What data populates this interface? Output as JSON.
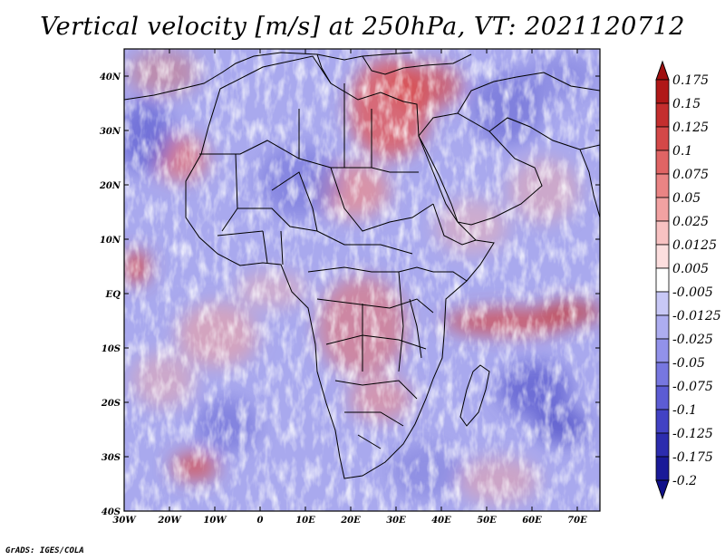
{
  "title": "Vertical velocity [m/s] at 250hPa, VT: 2021120712",
  "credit": "GrADS: IGES/COLA",
  "chart_data": {
    "type": "heatmap",
    "variable": "Vertical velocity",
    "units": "m/s",
    "level": "250hPa",
    "valid_time": "2021120712",
    "lon_range": [
      -30,
      75
    ],
    "lat_range": [
      -40,
      45
    ],
    "x_ticks": [
      {
        "value": -30,
        "label": "30W"
      },
      {
        "value": -20,
        "label": "20W"
      },
      {
        "value": -10,
        "label": "10W"
      },
      {
        "value": 0,
        "label": "0"
      },
      {
        "value": 10,
        "label": "10E"
      },
      {
        "value": 20,
        "label": "20E"
      },
      {
        "value": 30,
        "label": "30E"
      },
      {
        "value": 40,
        "label": "40E"
      },
      {
        "value": 50,
        "label": "50E"
      },
      {
        "value": 60,
        "label": "60E"
      },
      {
        "value": 70,
        "label": "70E"
      }
    ],
    "y_ticks": [
      {
        "value": 40,
        "label": "40N"
      },
      {
        "value": 30,
        "label": "30N"
      },
      {
        "value": 20,
        "label": "20N"
      },
      {
        "value": 10,
        "label": "10N"
      },
      {
        "value": 0,
        "label": "EQ"
      },
      {
        "value": -10,
        "label": "10S"
      },
      {
        "value": -20,
        "label": "20S"
      },
      {
        "value": -30,
        "label": "30S"
      },
      {
        "value": -40,
        "label": "40S"
      }
    ],
    "colorbar": {
      "levels": [
        {
          "value": 0.175,
          "label": "0.175",
          "color": "#b01818"
        },
        {
          "value": 0.15,
          "label": "0.15",
          "color": "#c42e2e"
        },
        {
          "value": 0.125,
          "label": "0.125",
          "color": "#d44848"
        },
        {
          "value": 0.1,
          "label": "0.1",
          "color": "#e06464"
        },
        {
          "value": 0.075,
          "label": "0.075",
          "color": "#ea8484"
        },
        {
          "value": 0.05,
          "label": "0.05",
          "color": "#f2a2a2"
        },
        {
          "value": 0.025,
          "label": "0.025",
          "color": "#f8c2c2"
        },
        {
          "value": 0.0125,
          "label": "0.0125",
          "color": "#fcdede"
        },
        {
          "value": 0.005,
          "label": "0.005",
          "color": "#ffffff"
        },
        {
          "value": -0.005,
          "label": "-0.005",
          "color": "#e2e2fb"
        },
        {
          "value": -0.0125,
          "label": "-0.0125",
          "color": "#c8c8f6"
        },
        {
          "value": -0.025,
          "label": "-0.025",
          "color": "#adadf0"
        },
        {
          "value": -0.05,
          "label": "-0.05",
          "color": "#9292ea"
        },
        {
          "value": -0.075,
          "label": "-0.075",
          "color": "#7777e0"
        },
        {
          "value": -0.1,
          "label": "-0.1",
          "color": "#5c5cd4"
        },
        {
          "value": -0.125,
          "label": "-0.125",
          "color": "#4242c4"
        },
        {
          "value": -0.175,
          "label": "-0.175",
          "color": "#2c2cae"
        },
        {
          "value": -0.2,
          "label": "-0.2",
          "color": "#1a1a98"
        }
      ],
      "top_arrow_color": "#a01010",
      "bottom_arrow_color": "#10108a"
    }
  }
}
